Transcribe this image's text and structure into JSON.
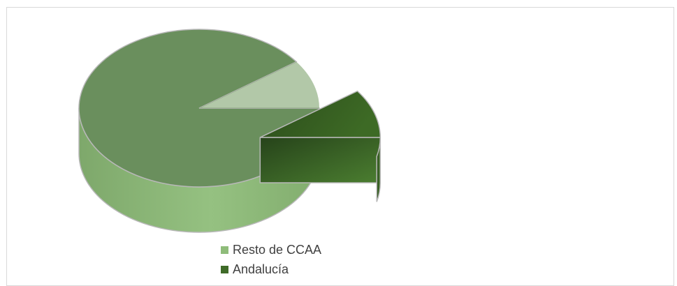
{
  "chart_data": {
    "type": "pie",
    "style": "3d-exploded",
    "title": "",
    "series": [
      {
        "name": "Resto de CCAA",
        "value": 90,
        "color": "#8fbc7a"
      },
      {
        "name": "Andalucía",
        "value": 10,
        "color": "#3f6b28"
      }
    ],
    "exploded": "Andalucía",
    "legend_position": "bottom"
  }
}
